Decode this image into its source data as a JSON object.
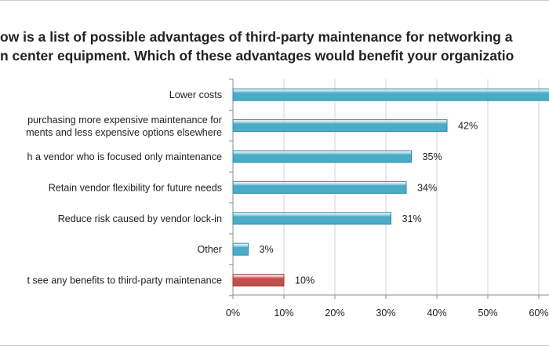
{
  "title_lines": [
    "ow is a list of possible advantages of third-party maintenance for networking a",
    "n center equipment. Which of these advantages would benefit your organizatio"
  ],
  "chart_data": {
    "type": "bar",
    "orientation": "horizontal",
    "categories": [
      [
        "Lower costs"
      ],
      [
        "purchasing more expensive maintenance for",
        "ments and less expensive options elsewhere"
      ],
      [
        "h a vendor who is focused only maintenance"
      ],
      [
        "Retain vendor flexibility for future needs"
      ],
      [
        "Reduce risk caused by vendor lock-in"
      ],
      [
        "Other"
      ],
      [
        "t see any benefits to third-party maintenance"
      ]
    ],
    "values": [
      66,
      42,
      35,
      34,
      31,
      3,
      10
    ],
    "value_labels": [
      "",
      "42%",
      "35%",
      "34%",
      "31%",
      "3%",
      "10%"
    ],
    "bar_colors": [
      "#4bacc6",
      "#4bacc6",
      "#4bacc6",
      "#4bacc6",
      "#4bacc6",
      "#4bacc6",
      "#c0504d"
    ],
    "xlim": [
      0,
      70
    ],
    "x_ticks": [
      0,
      10,
      20,
      30,
      40,
      50,
      60
    ],
    "x_tick_labels": [
      "0%",
      "10%",
      "20%",
      "30%",
      "40%",
      "50%",
      "60%"
    ],
    "grid": "vertical",
    "legend": "none"
  }
}
